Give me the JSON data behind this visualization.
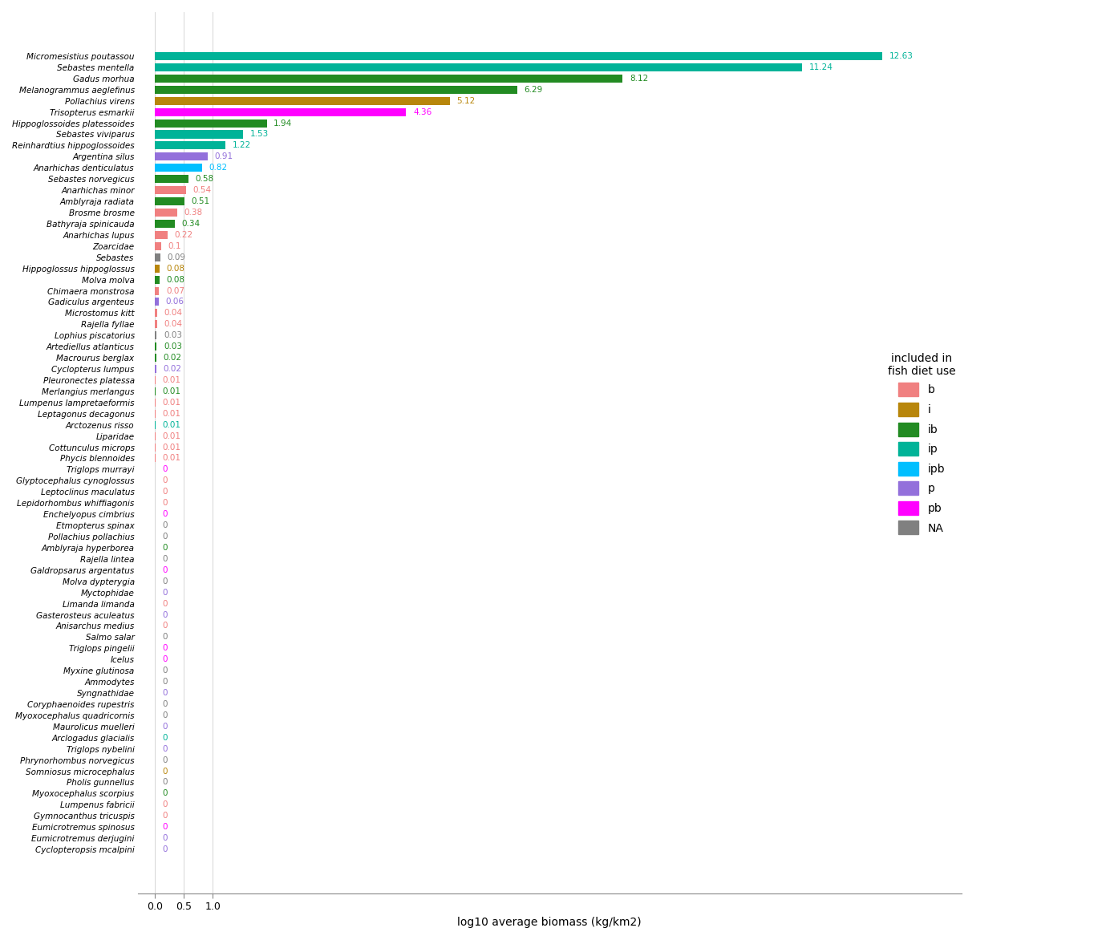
{
  "species": [
    "Micromesistius poutassou",
    "Sebastes mentella",
    "Gadus morhua",
    "Melanogrammus aeglefinus",
    "Pollachius virens",
    "Trisopterus esmarkii",
    "Hippoglossoides platessoides",
    "Sebastes viviparus",
    "Reinhardtius hippoglossoides",
    "Argentina silus",
    "Anarhichas denticulatus",
    "Sebastes norvegicus",
    "Anarhichas minor",
    "Amblyraja radiata",
    "Brosme brosme",
    "Bathyraja spinicauda",
    "Anarhichas lupus",
    "Zoarcidae",
    "Sebastes",
    "Hippoglossus hippoglossus",
    "Molva molva",
    "Chimaera monstrosa",
    "Gadiculus argenteus",
    "Microstomus kitt",
    "Rajella fyllae",
    "Lophius piscatorius",
    "Artediellus atlanticus",
    "Macrourus berglax",
    "Cyclopterus lumpus",
    "Pleuronectes platessa",
    "Merlangius merlangus",
    "Lumpenus lampretaeformis",
    "Leptagonus decagonus",
    "Arctozenus risso",
    "Liparidae",
    "Cottunculus microps",
    "Phycis blennoides",
    "Triglops murrayi",
    "Glyptocephalus cynoglossus",
    "Leptoclinus maculatus",
    "Lepidorhombus whiffiagonis",
    "Enchelyopus cimbrius",
    "Etmopterus spinax",
    "Pollachius pollachius",
    "Amblyraja hyperborea",
    "Rajella lintea",
    "Galdropsarus argentatus",
    "Molva dypterygia",
    "Myctophidae",
    "Limanda limanda",
    "Gasterosteus aculeatus",
    "Anisarchus medius",
    "Salmo salar",
    "Triglops pingelii",
    "Icelus",
    "Myxine glutinosa",
    "Ammodytes",
    "Syngnathidae",
    "Coryphaenoides rupestris",
    "Myoxocephalus quadricornis",
    "Maurolicus muelleri",
    "Arclogadus glacialis",
    "Triglops nybelini",
    "Phrynorhombus norvegicus",
    "Somniosus microcephalus",
    "Pholis gunnellus",
    "Myoxocephalus scorpius",
    "Lumpenus fabricii",
    "Gymnocanthus tricuspis",
    "Eumicrotremus spinosus",
    "Eumicrotremus derjugini",
    "Cyclopteropsis mcalpini"
  ],
  "values": [
    12.63,
    11.24,
    8.12,
    6.29,
    5.12,
    4.36,
    1.94,
    1.53,
    1.22,
    0.91,
    0.82,
    0.58,
    0.54,
    0.51,
    0.38,
    0.34,
    0.22,
    0.1,
    0.09,
    0.08,
    0.08,
    0.07,
    0.06,
    0.04,
    0.04,
    0.03,
    0.03,
    0.02,
    0.02,
    0.01,
    0.01,
    0.01,
    0.01,
    0.01,
    0.01,
    0.01,
    0.01,
    0.0,
    0.0,
    0.0,
    0.0,
    0.0,
    0.0,
    0.0,
    0.0,
    0.0,
    0.0,
    0.0,
    0.0,
    0.0,
    0.0,
    0.0,
    0.0,
    0.0,
    0.0,
    0.0,
    0.0,
    0.0,
    0.0,
    0.0,
    0.0,
    0.0,
    0.0,
    0.0,
    0.0,
    0.0,
    0.0,
    0.0,
    0.0,
    0.0,
    0.0,
    0.0
  ],
  "label_values": [
    "12.63",
    "11.24",
    "8.12",
    "6.29",
    "5.12",
    "4.36",
    "1.94",
    "1.53",
    "1.22",
    "0.91",
    "0.82",
    "0.58",
    "0.54",
    "0.51",
    "0.38",
    "0.34",
    "0.22",
    "0.1",
    "0.09",
    "0.08",
    "0.08",
    "0.07",
    "0.06",
    "0.04",
    "0.04",
    "0.03",
    "0.03",
    "0.02",
    "0.02",
    "0.01",
    "0.01",
    "0.01",
    "0.01",
    "0.01",
    "0.01",
    "0.01",
    "0.01",
    "0",
    "0",
    "0",
    "0",
    "0",
    "0",
    "0",
    "0",
    "0",
    "0",
    "0",
    "0",
    "0",
    "0",
    "0",
    "0",
    "0",
    "0",
    "0",
    "0",
    "0",
    "0",
    "0",
    "0",
    "0",
    "0",
    "0",
    "0",
    "0",
    "0",
    "0",
    "0",
    "0",
    "0",
    "0"
  ],
  "guilds": [
    "ip",
    "ip",
    "ib",
    "ib",
    "i",
    "pb",
    "ib",
    "ip",
    "ip",
    "p",
    "ipb",
    "ib",
    "b",
    "ib",
    "b",
    "ib",
    "b",
    "b",
    "NA",
    "i",
    "ib",
    "b",
    "p",
    "b",
    "b",
    "NA",
    "ib",
    "ib",
    "p",
    "b",
    "ib",
    "b",
    "b",
    "ip",
    "b",
    "b",
    "b",
    "pb",
    "b",
    "b",
    "b",
    "pb",
    "NA",
    "NA",
    "ib",
    "NA",
    "pb",
    "NA",
    "p",
    "b",
    "p",
    "b",
    "NA",
    "pb",
    "pb",
    "NA",
    "NA",
    "p",
    "NA",
    "NA",
    "p",
    "ip",
    "p",
    "NA",
    "i",
    "NA",
    "ib",
    "b",
    "b",
    "pb",
    "p",
    "p"
  ],
  "guild_colors": {
    "b": "#F08080",
    "i": "#B8860B",
    "ib": "#228B22",
    "ip": "#00B398",
    "ipb": "#00BFFF",
    "p": "#9370DB",
    "pb": "#FF00FF",
    "NA": "#808080"
  },
  "label_colors": {
    "b": "#F08080",
    "i": "#B8860B",
    "ib": "#228B22",
    "ip": "#00B398",
    "ipb": "#00BFFF",
    "p": "#9370DB",
    "pb": "#FF00FF",
    "NA": "#808080"
  },
  "xlabel": "log10 average biomass (kg/km2)",
  "legend_title": "included in\nfish diet use",
  "legend_labels": [
    "b",
    "i",
    "ib",
    "ip",
    "ipb",
    "p",
    "pb",
    "NA"
  ],
  "xlim": [
    -0.3,
    14.0
  ],
  "xticks": [
    0.0,
    0.5,
    1.0
  ],
  "xticklabels": [
    "0.0",
    "0.5",
    "1.0"
  ]
}
